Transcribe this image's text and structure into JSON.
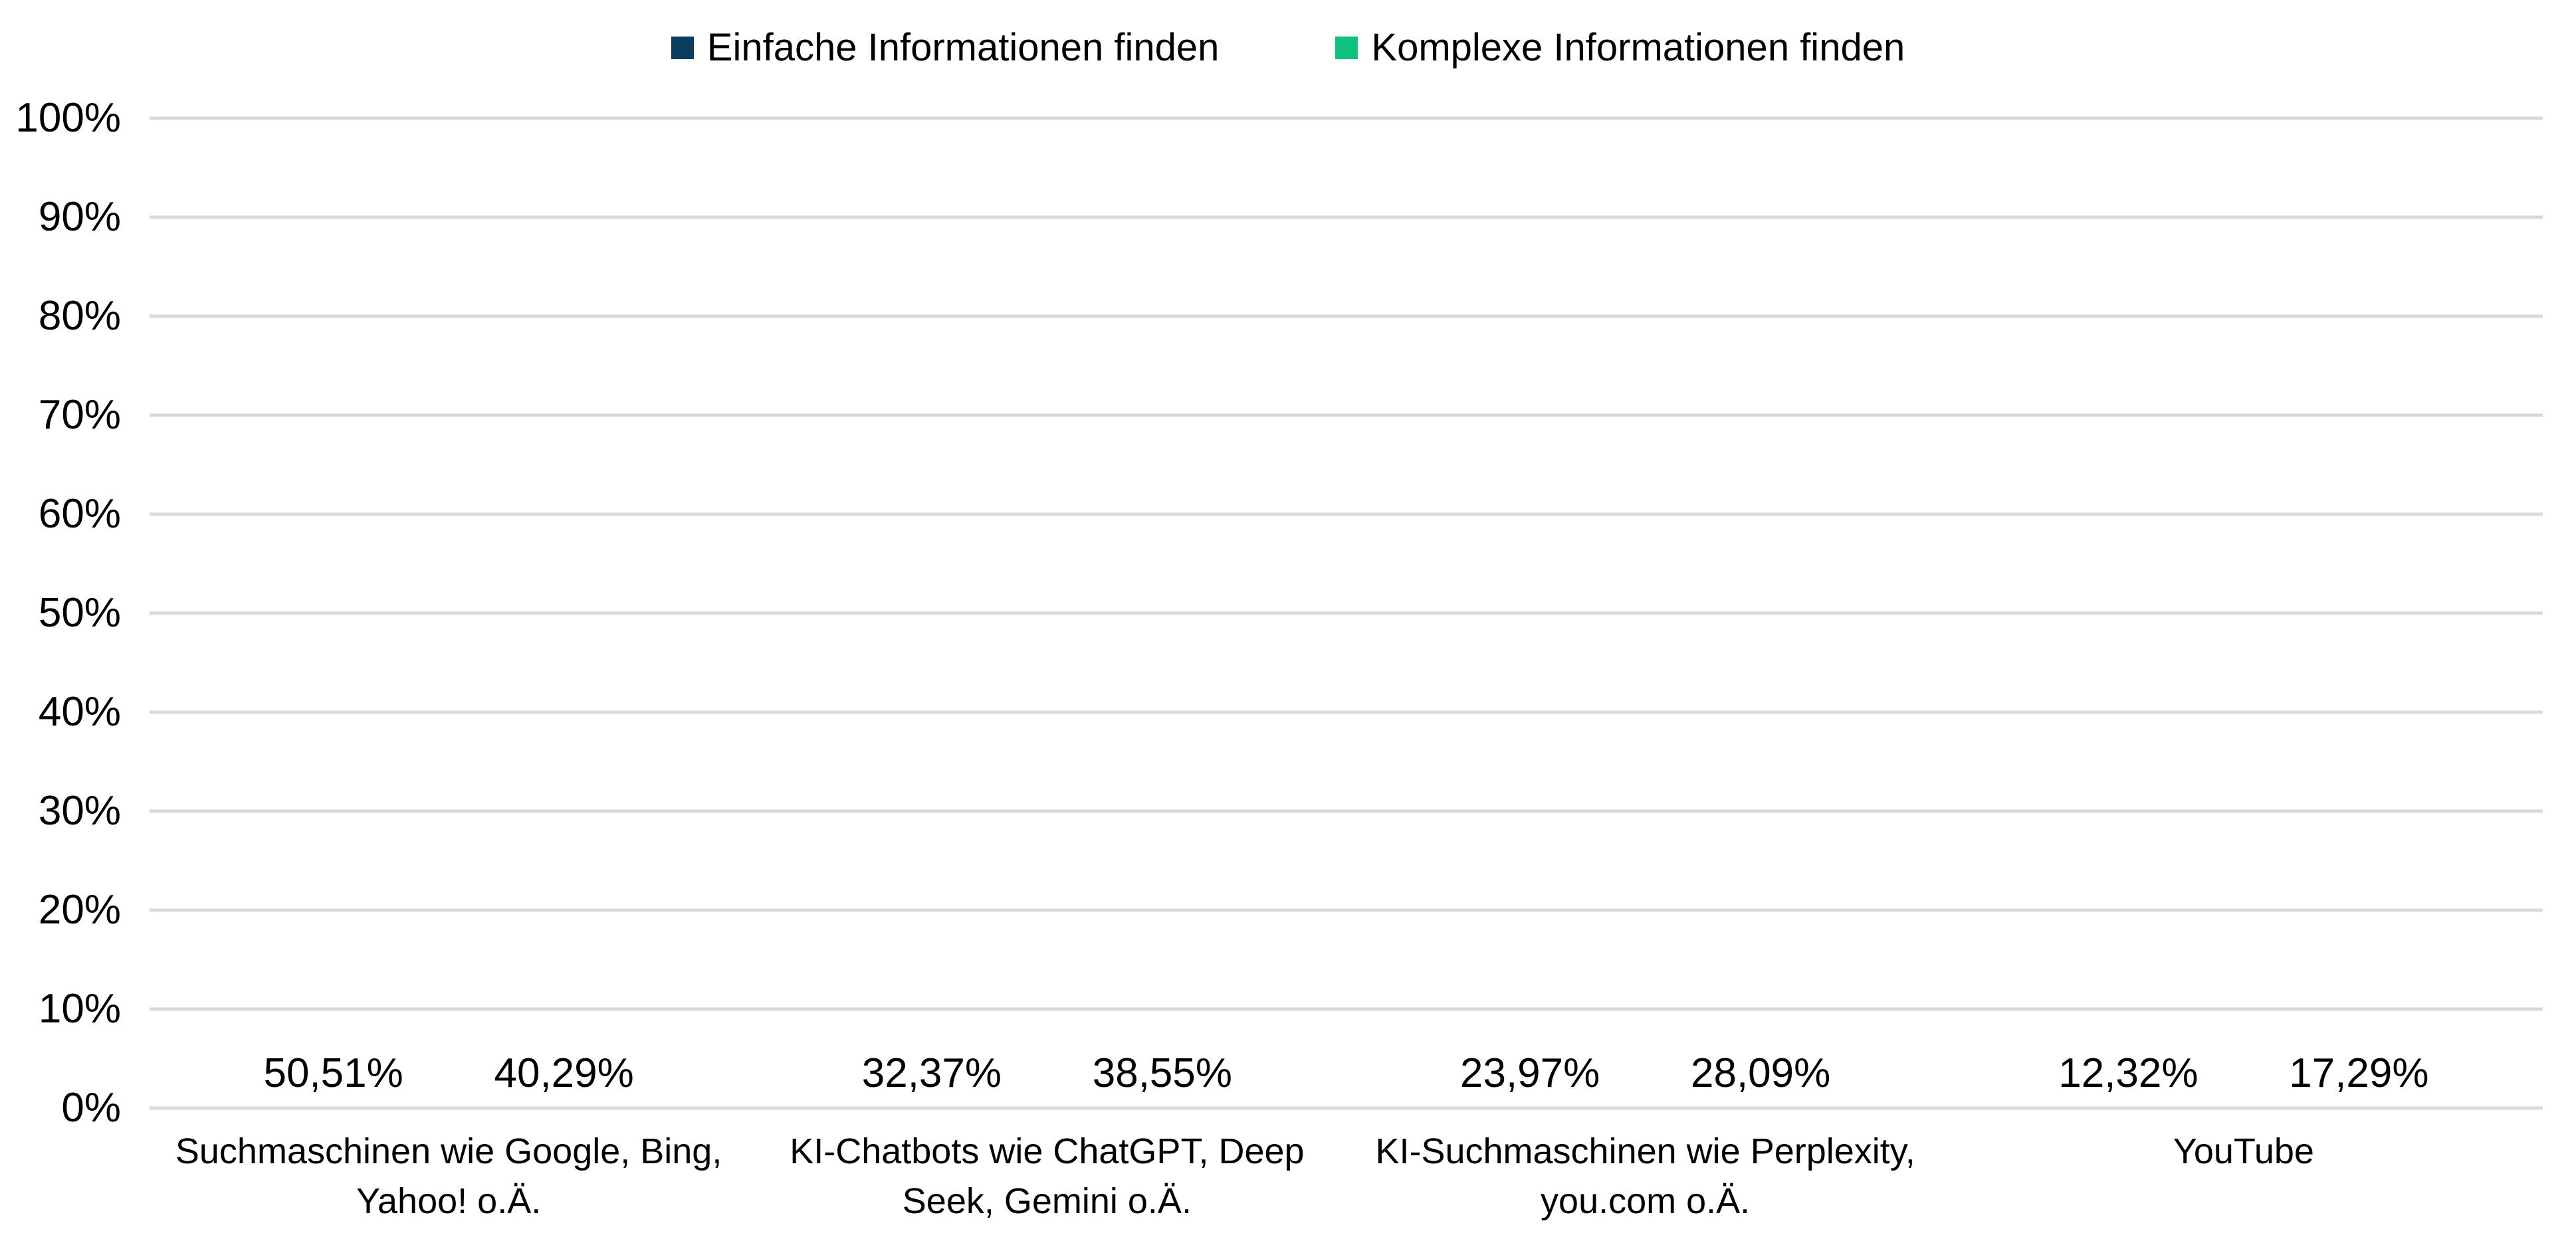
{
  "chart_data": {
    "type": "bar",
    "title": "",
    "legend_position": "top",
    "grid": true,
    "background_color": "#FFFFFF",
    "gridline_color": "#D9D9D9",
    "text_color": "#000000",
    "ylim": [
      0,
      100
    ],
    "ytick_step": 10,
    "ytick_labels": [
      "0%",
      "10%",
      "20%",
      "30%",
      "40%",
      "50%",
      "60%",
      "70%",
      "80%",
      "90%",
      "100%"
    ],
    "categories": [
      "Suchmaschinen wie Google, Bing, Yahoo! o.Ä.",
      "KI-Chatbots wie ChatGPT, Deep Seek, Gemini o.Ä.",
      "KI-Suchmaschinen wie Perplexity, you.com o.Ä.",
      "YouTube"
    ],
    "category_label_lines": [
      [
        "Suchmaschinen wie Google, Bing,",
        "Yahoo! o.Ä."
      ],
      [
        "KI-Chatbots wie ChatGPT, Deep",
        "Seek, Gemini o.Ä."
      ],
      [
        "KI-Suchmaschinen wie Perplexity,",
        "you.com o.Ä."
      ],
      [
        "YouTube"
      ]
    ],
    "series": [
      {
        "name": "Einfache Informationen finden",
        "color": "#0B3B5D",
        "values": [
          50.51,
          32.37,
          23.97,
          12.32
        ],
        "value_labels": [
          "50,51%",
          "32,37%",
          "23,97%",
          "12,32%"
        ]
      },
      {
        "name": "Komplexe Informationen finden",
        "color": "#10C17D",
        "values": [
          40.29,
          38.55,
          28.09,
          17.29
        ],
        "value_labels": [
          "40,29%",
          "38,55%",
          "28,09%",
          "17,29%"
        ]
      }
    ]
  }
}
